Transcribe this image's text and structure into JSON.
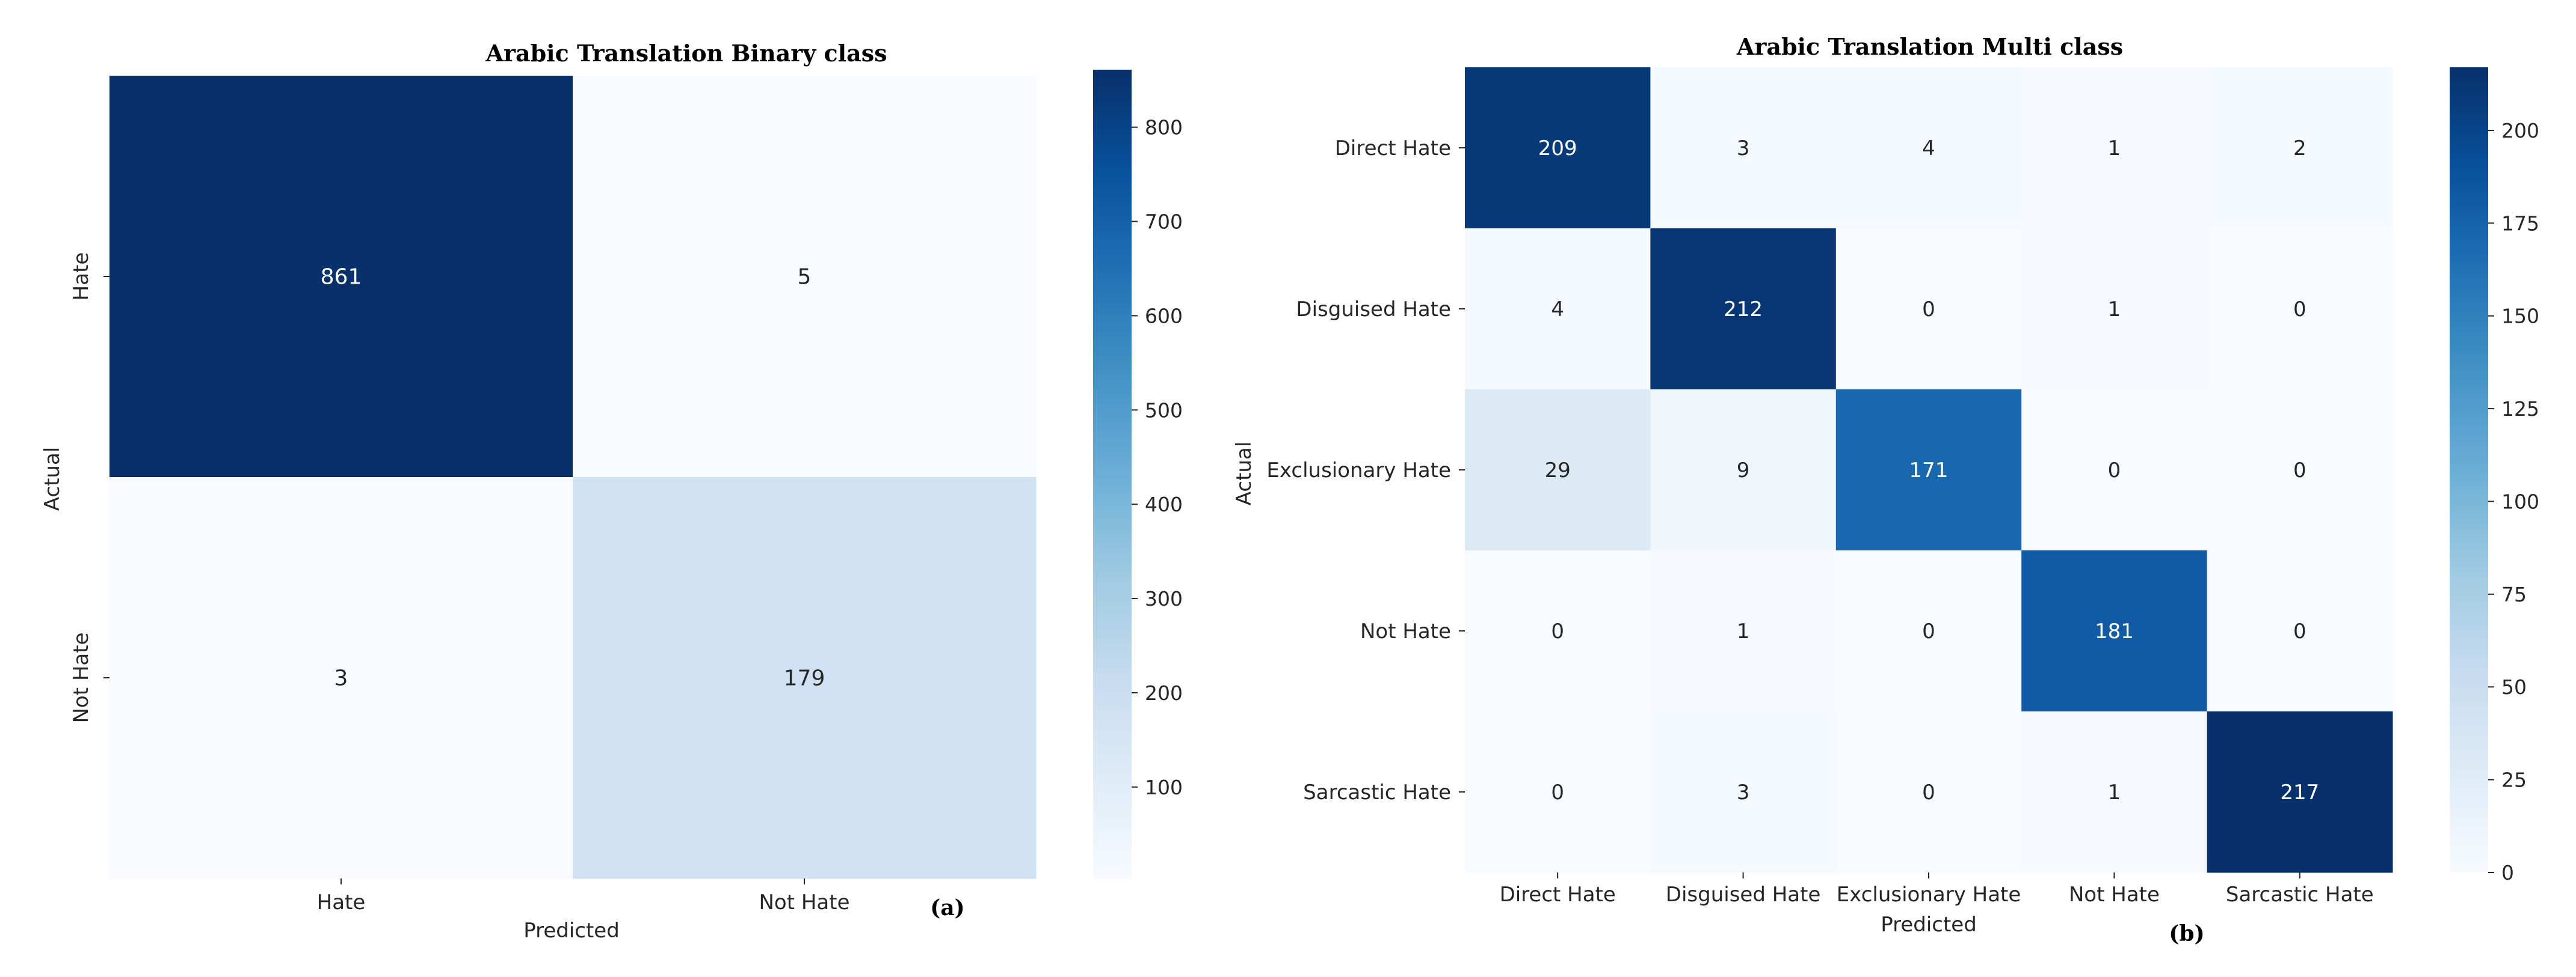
{
  "chart_data": [
    {
      "type": "heatmap",
      "title": "Arabic Translation Binary class",
      "panel_label": "(a)",
      "xlabel": "Predicted",
      "ylabel": "Actual",
      "x_categories": [
        "Hate",
        "Not Hate"
      ],
      "y_categories": [
        "Hate",
        "Not Hate"
      ],
      "values": [
        [
          861,
          5
        ],
        [
          3,
          179
        ]
      ],
      "colorbar": {
        "min": 3,
        "max": 861,
        "ticks": [
          100,
          200,
          300,
          400,
          500,
          600,
          700,
          800
        ]
      },
      "colormap": [
        "#f7fbff",
        "#deebf7",
        "#c6dbef",
        "#9ecae1",
        "#6baed6",
        "#4292c6",
        "#2171b5",
        "#08519c",
        "#08306b"
      ]
    },
    {
      "type": "heatmap",
      "title": "Arabic Translation Multi class",
      "panel_label": "(b)",
      "xlabel": "Predicted",
      "ylabel": "Actual",
      "x_categories": [
        "Direct Hate",
        "Disguised Hate",
        "Exclusionary Hate",
        "Not Hate",
        "Sarcastic Hate"
      ],
      "y_categories": [
        "Direct Hate",
        "Disguised Hate",
        "Exclusionary Hate",
        "Not Hate",
        "Sarcastic Hate"
      ],
      "values": [
        [
          209,
          3,
          4,
          1,
          2
        ],
        [
          4,
          212,
          0,
          1,
          0
        ],
        [
          29,
          9,
          171,
          0,
          0
        ],
        [
          0,
          1,
          0,
          181,
          0
        ],
        [
          0,
          3,
          0,
          1,
          217
        ]
      ],
      "colorbar": {
        "min": 0,
        "max": 217,
        "ticks": [
          0,
          25,
          50,
          75,
          100,
          125,
          150,
          175,
          200
        ]
      },
      "colormap": [
        "#f7fbff",
        "#deebf7",
        "#c6dbef",
        "#9ecae1",
        "#6baed6",
        "#4292c6",
        "#2171b5",
        "#08519c",
        "#08306b"
      ]
    }
  ]
}
